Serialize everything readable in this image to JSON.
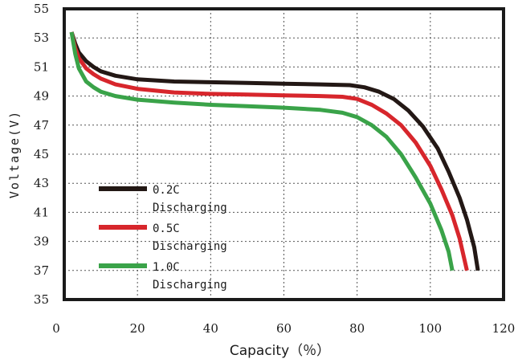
{
  "chart_data": {
    "type": "line",
    "xlabel": "Capacity（％）",
    "ylabel": "Voltage(V)",
    "xlim": [
      0,
      120
    ],
    "ylim": [
      35,
      55
    ],
    "xticks": [
      "0",
      "20",
      "40",
      "60",
      "80",
      "100",
      "120"
    ],
    "yticks": [
      "35",
      "37",
      "39",
      "41",
      "43",
      "45",
      "47",
      "49",
      "51",
      "53",
      "55"
    ],
    "grid": true,
    "legend_position": "bottom-left",
    "series": [
      {
        "name_lines": [
          "0.2C",
          "Discharging"
        ],
        "color": "#231815",
        "points": [
          [
            2,
            53.4
          ],
          [
            3,
            52.6
          ],
          [
            4,
            52.0
          ],
          [
            6,
            51.4
          ],
          [
            8,
            51.0
          ],
          [
            10,
            50.7
          ],
          [
            14,
            50.4
          ],
          [
            20,
            50.15
          ],
          [
            30,
            50.0
          ],
          [
            40,
            49.95
          ],
          [
            50,
            49.9
          ],
          [
            60,
            49.85
          ],
          [
            70,
            49.8
          ],
          [
            78,
            49.75
          ],
          [
            82,
            49.6
          ],
          [
            86,
            49.3
          ],
          [
            90,
            48.8
          ],
          [
            94,
            48.0
          ],
          [
            98,
            46.9
          ],
          [
            102,
            45.4
          ],
          [
            105,
            43.8
          ],
          [
            108,
            42.0
          ],
          [
            110,
            40.5
          ],
          [
            112,
            38.6
          ],
          [
            113,
            37.0
          ]
        ]
      },
      {
        "name_lines": [
          "0.5C",
          "Discharging"
        ],
        "color": "#d7262c",
        "points": [
          [
            2,
            53.4
          ],
          [
            3,
            52.3
          ],
          [
            4,
            51.6
          ],
          [
            6,
            50.9
          ],
          [
            8,
            50.5
          ],
          [
            10,
            50.2
          ],
          [
            14,
            49.8
          ],
          [
            20,
            49.5
          ],
          [
            30,
            49.25
          ],
          [
            40,
            49.15
          ],
          [
            50,
            49.1
          ],
          [
            60,
            49.05
          ],
          [
            70,
            49.0
          ],
          [
            76,
            48.95
          ],
          [
            80,
            48.8
          ],
          [
            84,
            48.4
          ],
          [
            88,
            47.8
          ],
          [
            92,
            47.0
          ],
          [
            96,
            45.8
          ],
          [
            100,
            44.2
          ],
          [
            103,
            42.6
          ],
          [
            106,
            40.8
          ],
          [
            108,
            39.2
          ],
          [
            110,
            37.0
          ]
        ]
      },
      {
        "name_lines": [
          "1.0C",
          "Discharging"
        ],
        "color": "#3aa349",
        "points": [
          [
            2,
            53.4
          ],
          [
            3,
            51.9
          ],
          [
            4,
            50.9
          ],
          [
            6,
            50.0
          ],
          [
            8,
            49.6
          ],
          [
            10,
            49.3
          ],
          [
            14,
            49.0
          ],
          [
            20,
            48.75
          ],
          [
            30,
            48.55
          ],
          [
            40,
            48.4
          ],
          [
            50,
            48.3
          ],
          [
            60,
            48.2
          ],
          [
            70,
            48.05
          ],
          [
            76,
            47.85
          ],
          [
            80,
            47.55
          ],
          [
            84,
            47.0
          ],
          [
            88,
            46.2
          ],
          [
            92,
            45.0
          ],
          [
            96,
            43.4
          ],
          [
            100,
            41.6
          ],
          [
            103,
            39.8
          ],
          [
            105,
            38.3
          ],
          [
            106,
            37.0
          ]
        ]
      }
    ]
  }
}
